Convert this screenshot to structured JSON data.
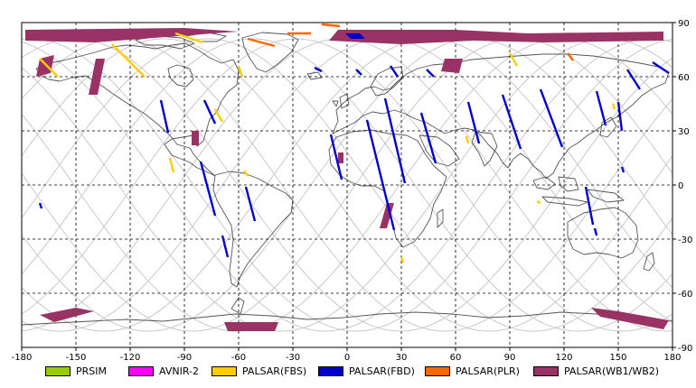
{
  "map": {
    "x_ticks": [
      "-180",
      "-150",
      "-120",
      "-90",
      "-60",
      "-30",
      "0",
      "30",
      "60",
      "90",
      "120",
      "150",
      "180"
    ],
    "y_ticks": [
      "90",
      "60",
      "30",
      "0",
      "-30",
      "-60",
      "-90"
    ],
    "colors": {
      "PRSIM": "#99cc00",
      "AVNIR-2": "#ff00ff",
      "PALSAR(FBS)": "#ffcc00",
      "PALSAR(FBD)": "#0000cc",
      "PALSAR(PLR)": "#ff6600",
      "PALSAR(WB1/WB2)": "#993366"
    }
  },
  "legend": [
    {
      "label": "PRSIM",
      "color": "#99cc00"
    },
    {
      "label": "AVNIR-2",
      "color": "#ff00ff"
    },
    {
      "label": "PALSAR(FBS)",
      "color": "#ffcc00"
    },
    {
      "label": "PALSAR(FBD)",
      "color": "#0000cc"
    },
    {
      "label": "PALSAR(PLR)",
      "color": "#ff6600"
    },
    {
      "label": "PALSAR(WB1/WB2)",
      "color": "#993366"
    }
  ],
  "observations": [
    {
      "sensor": "PALSAR(WB1/WB2)",
      "region": "north polar band",
      "poly": [
        [
          -178,
          86
        ],
        [
          -90,
          87
        ],
        [
          -60,
          85
        ],
        [
          -140,
          79
        ],
        [
          -178,
          80
        ]
      ]
    },
    {
      "sensor": "PALSAR(WB1/WB2)",
      "region": "north polar band east",
      "poly": [
        [
          -5,
          86
        ],
        [
          60,
          86
        ],
        [
          100,
          84
        ],
        [
          175,
          85
        ],
        [
          175,
          80
        ],
        [
          110,
          79
        ],
        [
          70,
          80
        ],
        [
          30,
          78
        ],
        [
          -10,
          80
        ],
        [
          -5,
          86
        ]
      ]
    },
    {
      "sensor": "PALSAR(WB1/WB2)",
      "region": "alaska strip",
      "poly": [
        [
          -170,
          70
        ],
        [
          -162,
          72
        ],
        [
          -164,
          62
        ],
        [
          -172,
          60
        ]
      ]
    },
    {
      "sensor": "PALSAR(WB1/WB2)",
      "region": "canada strip",
      "poly": [
        [
          -139,
          70
        ],
        [
          -134,
          70
        ],
        [
          -138,
          50
        ],
        [
          -143,
          50
        ]
      ]
    },
    {
      "sensor": "PALSAR(WB1/WB2)",
      "region": "siberia patch",
      "poly": [
        [
          54,
          70
        ],
        [
          64,
          70
        ],
        [
          62,
          62
        ],
        [
          52,
          63
        ]
      ]
    },
    {
      "sensor": "PALSAR(WB1/WB2)",
      "region": "gulf patch",
      "poly": [
        [
          -86,
          30
        ],
        [
          -82,
          30
        ],
        [
          -82,
          22
        ],
        [
          -86,
          22
        ]
      ]
    },
    {
      "sensor": "PALSAR(WB1/WB2)",
      "region": "sahara patch",
      "poly": [
        [
          -5,
          18
        ],
        [
          -2,
          18
        ],
        [
          -2,
          12
        ],
        [
          -5,
          12
        ]
      ]
    },
    {
      "sensor": "PALSAR(WB1/WB2)",
      "region": "south africa patch",
      "poly": [
        [
          22,
          -10
        ],
        [
          26,
          -10
        ],
        [
          22,
          -24
        ],
        [
          18,
          -24
        ]
      ]
    },
    {
      "sensor": "PALSAR(WB1/WB2)",
      "region": "antarctica west",
      "poly": [
        [
          -170,
          -72
        ],
        [
          -150,
          -68
        ],
        [
          -140,
          -70
        ],
        [
          -162,
          -76
        ]
      ]
    },
    {
      "sensor": "PALSAR(WB1/WB2)",
      "region": "antarctica south",
      "poly": [
        [
          -68,
          -76
        ],
        [
          -38,
          -76
        ],
        [
          -40,
          -81
        ],
        [
          -66,
          -81
        ]
      ]
    },
    {
      "sensor": "PALSAR(WB1/WB2)",
      "region": "antarctica east",
      "poly": [
        [
          135,
          -68
        ],
        [
          150,
          -70
        ],
        [
          178,
          -75
        ],
        [
          175,
          -80
        ],
        [
          140,
          -73
        ]
      ]
    },
    {
      "sensor": "PALSAR(FBD)",
      "line": [
        [
          -103,
          47
        ],
        [
          -99,
          29
        ]
      ]
    },
    {
      "sensor": "PALSAR(FBD)",
      "line": [
        [
          -79,
          47
        ],
        [
          -73,
          34
        ]
      ]
    },
    {
      "sensor": "PALSAR(FBD)",
      "line": [
        [
          -81,
          13
        ],
        [
          -73,
          -17
        ]
      ]
    },
    {
      "sensor": "PALSAR(FBD)",
      "line": [
        [
          -56,
          -1
        ],
        [
          -51,
          -20
        ]
      ]
    },
    {
      "sensor": "PALSAR(FBD)",
      "line": [
        [
          -69,
          -28
        ],
        [
          -66,
          -40
        ]
      ]
    },
    {
      "sensor": "PALSAR(FBD)",
      "line": [
        [
          -170,
          -10
        ],
        [
          -169,
          -13
        ]
      ]
    },
    {
      "sensor": "PALSAR(FBD)",
      "line": [
        [
          -9,
          28
        ],
        [
          -3,
          3
        ]
      ]
    },
    {
      "sensor": "PALSAR(FBD)",
      "line": [
        [
          11,
          36
        ],
        [
          26,
          -25
        ]
      ]
    },
    {
      "sensor": "PALSAR(FBD)",
      "line": [
        [
          21,
          48
        ],
        [
          32,
          1
        ]
      ]
    },
    {
      "sensor": "PALSAR(FBD)",
      "line": [
        [
          41,
          40
        ],
        [
          49,
          12
        ]
      ]
    },
    {
      "sensor": "PALSAR(FBD)",
      "line": [
        [
          67,
          46
        ],
        [
          73,
          23
        ]
      ]
    },
    {
      "sensor": "PALSAR(FBD)",
      "line": [
        [
          86,
          50
        ],
        [
          96,
          20
        ]
      ]
    },
    {
      "sensor": "PALSAR(FBD)",
      "line": [
        [
          107,
          53
        ],
        [
          119,
          21
        ]
      ]
    },
    {
      "sensor": "PALSAR(FBD)",
      "line": [
        [
          138,
          52
        ],
        [
          143,
          33
        ]
      ]
    },
    {
      "sensor": "PALSAR(FBD)",
      "line": [
        [
          150,
          46
        ],
        [
          152,
          30
        ]
      ]
    },
    {
      "sensor": "PALSAR(FBD)",
      "line": [
        [
          155,
          64
        ],
        [
          162,
          53
        ]
      ]
    },
    {
      "sensor": "PALSAR(FBD)",
      "line": [
        [
          169,
          68
        ],
        [
          178,
          62
        ]
      ]
    },
    {
      "sensor": "PALSAR(FBD)",
      "line": [
        [
          132,
          -1
        ],
        [
          136,
          -22
        ]
      ]
    },
    {
      "sensor": "PALSAR(FBD)",
      "line": [
        [
          44,
          64
        ],
        [
          48,
          60
        ]
      ]
    },
    {
      "sensor": "PALSAR(FBD)",
      "line": [
        [
          -18,
          65
        ],
        [
          -14,
          63
        ]
      ]
    },
    {
      "sensor": "PALSAR(FBD)",
      "line": [
        [
          5,
          64
        ],
        [
          8,
          61
        ]
      ]
    },
    {
      "sensor": "PALSAR(FBD)",
      "line": [
        [
          24,
          66
        ],
        [
          28,
          60
        ]
      ]
    },
    {
      "sensor": "PALSAR(FBD)",
      "line": [
        [
          152,
          10
        ],
        [
          153,
          7
        ]
      ]
    },
    {
      "sensor": "PALSAR(FBD)",
      "line": [
        [
          137,
          -24
        ],
        [
          138,
          -28
        ]
      ]
    },
    {
      "sensor": "PALSAR(FBD)",
      "poly": [
        [
          -1,
          84
        ],
        [
          7,
          84
        ],
        [
          10,
          81
        ],
        [
          2,
          81
        ]
      ]
    },
    {
      "sensor": "PALSAR(FBS)",
      "line": [
        [
          -170,
          70
        ],
        [
          -160,
          60
        ]
      ]
    },
    {
      "sensor": "PALSAR(FBS)",
      "line": [
        [
          -130,
          78
        ],
        [
          -112,
          60
        ]
      ]
    },
    {
      "sensor": "PALSAR(FBS)",
      "line": [
        [
          -95,
          84
        ],
        [
          -80,
          79
        ]
      ]
    },
    {
      "sensor": "PALSAR(FBS)",
      "line": [
        [
          -73,
          42
        ],
        [
          -69,
          35
        ]
      ]
    },
    {
      "sensor": "PALSAR(FBS)",
      "line": [
        [
          -98,
          15
        ],
        [
          -96,
          7
        ]
      ]
    },
    {
      "sensor": "PALSAR(FBS)",
      "line": [
        [
          -57,
          8
        ],
        [
          -55,
          5
        ]
      ]
    },
    {
      "sensor": "PALSAR(FBS)",
      "line": [
        [
          -60,
          66
        ],
        [
          -58,
          60
        ]
      ]
    },
    {
      "sensor": "PALSAR(FBS)",
      "line": [
        [
          105,
          -9
        ],
        [
          107,
          -10
        ]
      ]
    },
    {
      "sensor": "PALSAR(FBS)",
      "line": [
        [
          90,
          73
        ],
        [
          94,
          66
        ]
      ]
    },
    {
      "sensor": "PALSAR(FBS)",
      "line": [
        [
          30,
          -40
        ],
        [
          31,
          -43
        ]
      ]
    },
    {
      "sensor": "PALSAR(FBS)",
      "line": [
        [
          66,
          27
        ],
        [
          67,
          23
        ]
      ]
    },
    {
      "sensor": "PALSAR(FBS)",
      "line": [
        [
          147,
          45
        ],
        [
          148,
          42
        ]
      ]
    },
    {
      "sensor": "PALSAR(PLR)",
      "line": [
        [
          -55,
          81
        ],
        [
          -40,
          77
        ]
      ]
    },
    {
      "sensor": "PALSAR(PLR)",
      "line": [
        [
          122,
          73
        ],
        [
          125,
          69
        ]
      ]
    },
    {
      "sensor": "PALSAR(PLR)",
      "line": [
        [
          -33,
          84
        ],
        [
          -20,
          84
        ]
      ]
    },
    {
      "sensor": "PALSAR(PLR)",
      "line": [
        [
          -14,
          89
        ],
        [
          -4,
          88
        ]
      ]
    }
  ]
}
